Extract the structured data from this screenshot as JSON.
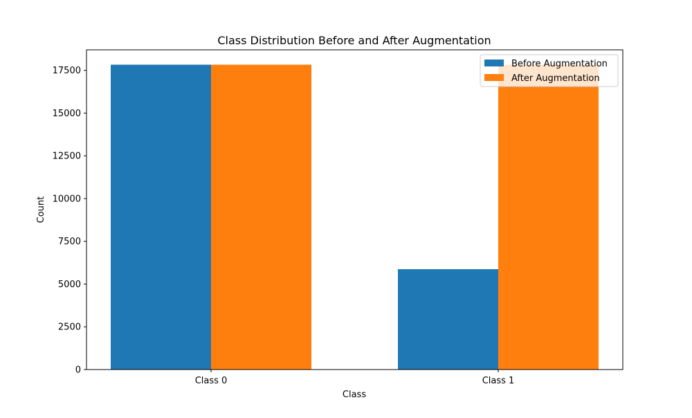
{
  "chart_data": {
    "type": "bar",
    "title": "Class Distribution Before and After Augmentation",
    "xlabel": "Class",
    "ylabel": "Count",
    "categories": [
      "Class 0",
      "Class 1"
    ],
    "series": [
      {
        "name": "Before Augmentation",
        "values": [
          17830,
          5870
        ],
        "color": "#1f77b4"
      },
      {
        "name": "After Augmentation",
        "values": [
          17830,
          17830
        ],
        "color": "#ff7f0e"
      }
    ],
    "ylim": [
      0,
      18700
    ],
    "yticks": [
      0,
      2500,
      5000,
      7500,
      10000,
      12500,
      15000,
      17500
    ],
    "ytick_labels": [
      "0",
      "2500",
      "5000",
      "7500",
      "10000",
      "12500",
      "15000",
      "17500"
    ],
    "grid": false,
    "legend_position": "top-right"
  }
}
